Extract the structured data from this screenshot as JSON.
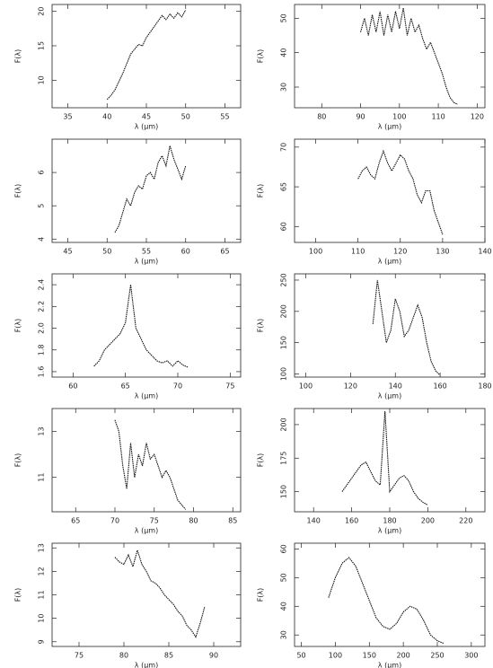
{
  "chart_data": [
    {
      "type": "line",
      "xlabel": "λ (μm)",
      "ylabel": "F(λ)",
      "xlim": [
        33,
        57
      ],
      "xticks": [
        35,
        40,
        45,
        50,
        55
      ],
      "ylim": [
        6,
        21
      ],
      "yticks": [
        10,
        15,
        20
      ],
      "x": [
        40,
        40.5,
        41,
        41.5,
        42,
        42.5,
        43,
        43.5,
        44,
        44.5,
        45,
        45.5,
        46,
        46.5,
        47,
        47.5,
        48,
        48.5,
        49,
        49.5,
        50
      ],
      "values": [
        7.2,
        7.8,
        8.6,
        9.8,
        11,
        12.4,
        13.8,
        14.5,
        15.2,
        15,
        16.2,
        17,
        17.8,
        18.6,
        19.4,
        18.8,
        19.6,
        19,
        19.8,
        19.2,
        20.2
      ]
    },
    {
      "type": "line",
      "xlabel": "λ (μm)",
      "ylabel": "F(λ)",
      "xlim": [
        73,
        122
      ],
      "xticks": [
        80,
        90,
        100,
        110,
        120
      ],
      "ylim": [
        24,
        54
      ],
      "yticks": [
        30,
        40,
        50
      ],
      "x": [
        90,
        91,
        92,
        93,
        94,
        95,
        96,
        97,
        98,
        99,
        100,
        101,
        102,
        103,
        104,
        105,
        106,
        107,
        108,
        109,
        110,
        111,
        112,
        113,
        114,
        115
      ],
      "values": [
        46,
        50,
        45,
        51,
        46,
        52,
        45,
        51,
        46,
        52,
        47,
        53,
        45,
        50,
        46,
        48,
        44,
        41,
        43,
        40,
        37,
        34,
        30,
        27,
        25.5,
        25
      ]
    },
    {
      "type": "line",
      "xlabel": "λ (μm)",
      "ylabel": "F(λ)",
      "xlim": [
        43,
        67
      ],
      "xticks": [
        45,
        50,
        55,
        60,
        65
      ],
      "ylim": [
        3.9,
        7
      ],
      "yticks": [
        4,
        5,
        6
      ],
      "x": [
        51,
        51.5,
        52,
        52.5,
        53,
        53.5,
        54,
        54.5,
        55,
        55.5,
        56,
        56.5,
        57,
        57.5,
        58,
        58.5,
        59,
        59.5,
        60
      ],
      "values": [
        4.2,
        4.4,
        4.8,
        5.2,
        5.0,
        5.4,
        5.6,
        5.5,
        5.9,
        6.0,
        5.8,
        6.3,
        6.5,
        6.2,
        6.8,
        6.4,
        6.1,
        5.8,
        6.2
      ]
    },
    {
      "type": "line",
      "xlabel": "λ (μm)",
      "ylabel": "F(λ)",
      "xlim": [
        95,
        140
      ],
      "xticks": [
        100,
        110,
        120,
        130,
        140
      ],
      "ylim": [
        58,
        71
      ],
      "yticks": [
        60,
        65,
        70
      ],
      "x": [
        110,
        111,
        112,
        113,
        114,
        115,
        116,
        117,
        118,
        119,
        120,
        121,
        122,
        123,
        124,
        125,
        126,
        127,
        128,
        129,
        130
      ],
      "values": [
        66,
        67,
        67.5,
        66.5,
        66,
        68,
        69.5,
        68,
        67,
        68,
        69,
        68.5,
        67,
        66,
        64,
        63,
        64.5,
        64.5,
        62,
        60.5,
        59
      ]
    },
    {
      "type": "line",
      "xlabel": "λ (μm)",
      "ylabel": "F(λ)",
      "xlim": [
        58,
        76
      ],
      "xticks": [
        60,
        65,
        70,
        75
      ],
      "ylim": [
        1.55,
        2.5
      ],
      "yticks": [
        1.6,
        1.8,
        {
          "value": 2,
          "label": "2.0"
        },
        2.2,
        2.4
      ],
      "x": [
        62,
        62.5,
        63,
        63.5,
        64,
        64.5,
        65,
        65.5,
        66,
        66.5,
        67,
        67.5,
        68,
        68.5,
        69,
        69.5,
        70,
        70.5,
        71
      ],
      "values": [
        1.65,
        1.7,
        1.8,
        1.85,
        1.9,
        1.95,
        2.05,
        2.4,
        2.0,
        1.9,
        1.8,
        1.75,
        1.7,
        1.68,
        1.7,
        1.65,
        1.7,
        1.66,
        1.64
      ]
    },
    {
      "type": "line",
      "xlabel": "λ (μm)",
      "ylabel": "F(λ)",
      "xlim": [
        95,
        180
      ],
      "xticks": [
        100,
        120,
        140,
        160,
        180
      ],
      "ylim": [
        95,
        260
      ],
      "yticks": [
        100,
        150,
        200,
        250
      ],
      "x": [
        130,
        132,
        134,
        136,
        138,
        140,
        142,
        144,
        146,
        148,
        150,
        152,
        154,
        156,
        158,
        160
      ],
      "values": [
        180,
        250,
        200,
        150,
        170,
        220,
        200,
        160,
        170,
        190,
        210,
        190,
        150,
        120,
        105,
        98
      ]
    },
    {
      "type": "line",
      "xlabel": "λ (μm)",
      "ylabel": "F(λ)",
      "xlim": [
        62,
        86
      ],
      "xticks": [
        65,
        70,
        75,
        80,
        85
      ],
      "ylim": [
        9.5,
        14
      ],
      "yticks": [
        11,
        13
      ],
      "x": [
        70,
        70.5,
        71,
        71.5,
        72,
        72.5,
        73,
        73.5,
        74,
        74.5,
        75,
        75.5,
        76,
        76.5,
        77,
        77.5,
        78,
        78.5,
        79
      ],
      "values": [
        13.5,
        13,
        11.5,
        10.5,
        12.5,
        11,
        12,
        11.5,
        12.5,
        11.8,
        12,
        11.5,
        11,
        11.3,
        11,
        10.5,
        10,
        9.8,
        9.6
      ]
    },
    {
      "type": "line",
      "xlabel": "λ (μm)",
      "ylabel": "F(λ)",
      "xlim": [
        130,
        230
      ],
      "xticks": [
        140,
        160,
        180,
        200,
        220
      ],
      "ylim": [
        135,
        212
      ],
      "yticks": [
        150,
        175,
        200
      ],
      "x": [
        155,
        157.5,
        160,
        162.5,
        165,
        167.5,
        170,
        172.5,
        175,
        177.5,
        180,
        182.5,
        185,
        187.5,
        190,
        192.5,
        195,
        197.5,
        200
      ],
      "values": [
        150,
        155,
        160,
        165,
        170,
        172,
        165,
        158,
        155,
        210,
        150,
        155,
        160,
        162,
        158,
        150,
        145,
        142,
        140
      ]
    },
    {
      "type": "line",
      "xlabel": "λ (μm)",
      "ylabel": "F(λ)",
      "xlim": [
        72,
        93
      ],
      "xticks": [
        75,
        80,
        85,
        90
      ],
      "ylim": [
        8.8,
        13.2
      ],
      "yticks": [
        9,
        10,
        11,
        12,
        13
      ],
      "x": [
        79,
        79.5,
        80,
        80.5,
        81,
        81.5,
        82,
        82.5,
        83,
        83.5,
        84,
        84.5,
        85,
        85.5,
        86,
        86.5,
        87,
        87.5,
        88,
        88.5,
        89
      ],
      "values": [
        12.6,
        12.4,
        12.3,
        12.7,
        12.2,
        12.9,
        12.3,
        12,
        11.6,
        11.5,
        11.3,
        11,
        10.8,
        10.6,
        10.3,
        10.1,
        9.7,
        9.5,
        9.2,
        9.8,
        10.5
      ]
    },
    {
      "type": "line",
      "xlabel": "λ (μm)",
      "ylabel": "F(λ)",
      "xlim": [
        40,
        320
      ],
      "xticks": [
        50,
        100,
        150,
        200,
        250,
        300
      ],
      "ylim": [
        26,
        62
      ],
      "yticks": [
        30,
        40,
        50,
        60
      ],
      "x": [
        90,
        100,
        110,
        120,
        130,
        140,
        150,
        160,
        170,
        180,
        190,
        200,
        210,
        220,
        230,
        240,
        250,
        260
      ],
      "values": [
        43,
        50,
        55,
        57,
        54,
        48,
        42,
        36,
        33,
        32,
        34,
        38,
        40,
        39,
        35,
        30,
        28,
        27
      ]
    }
  ]
}
